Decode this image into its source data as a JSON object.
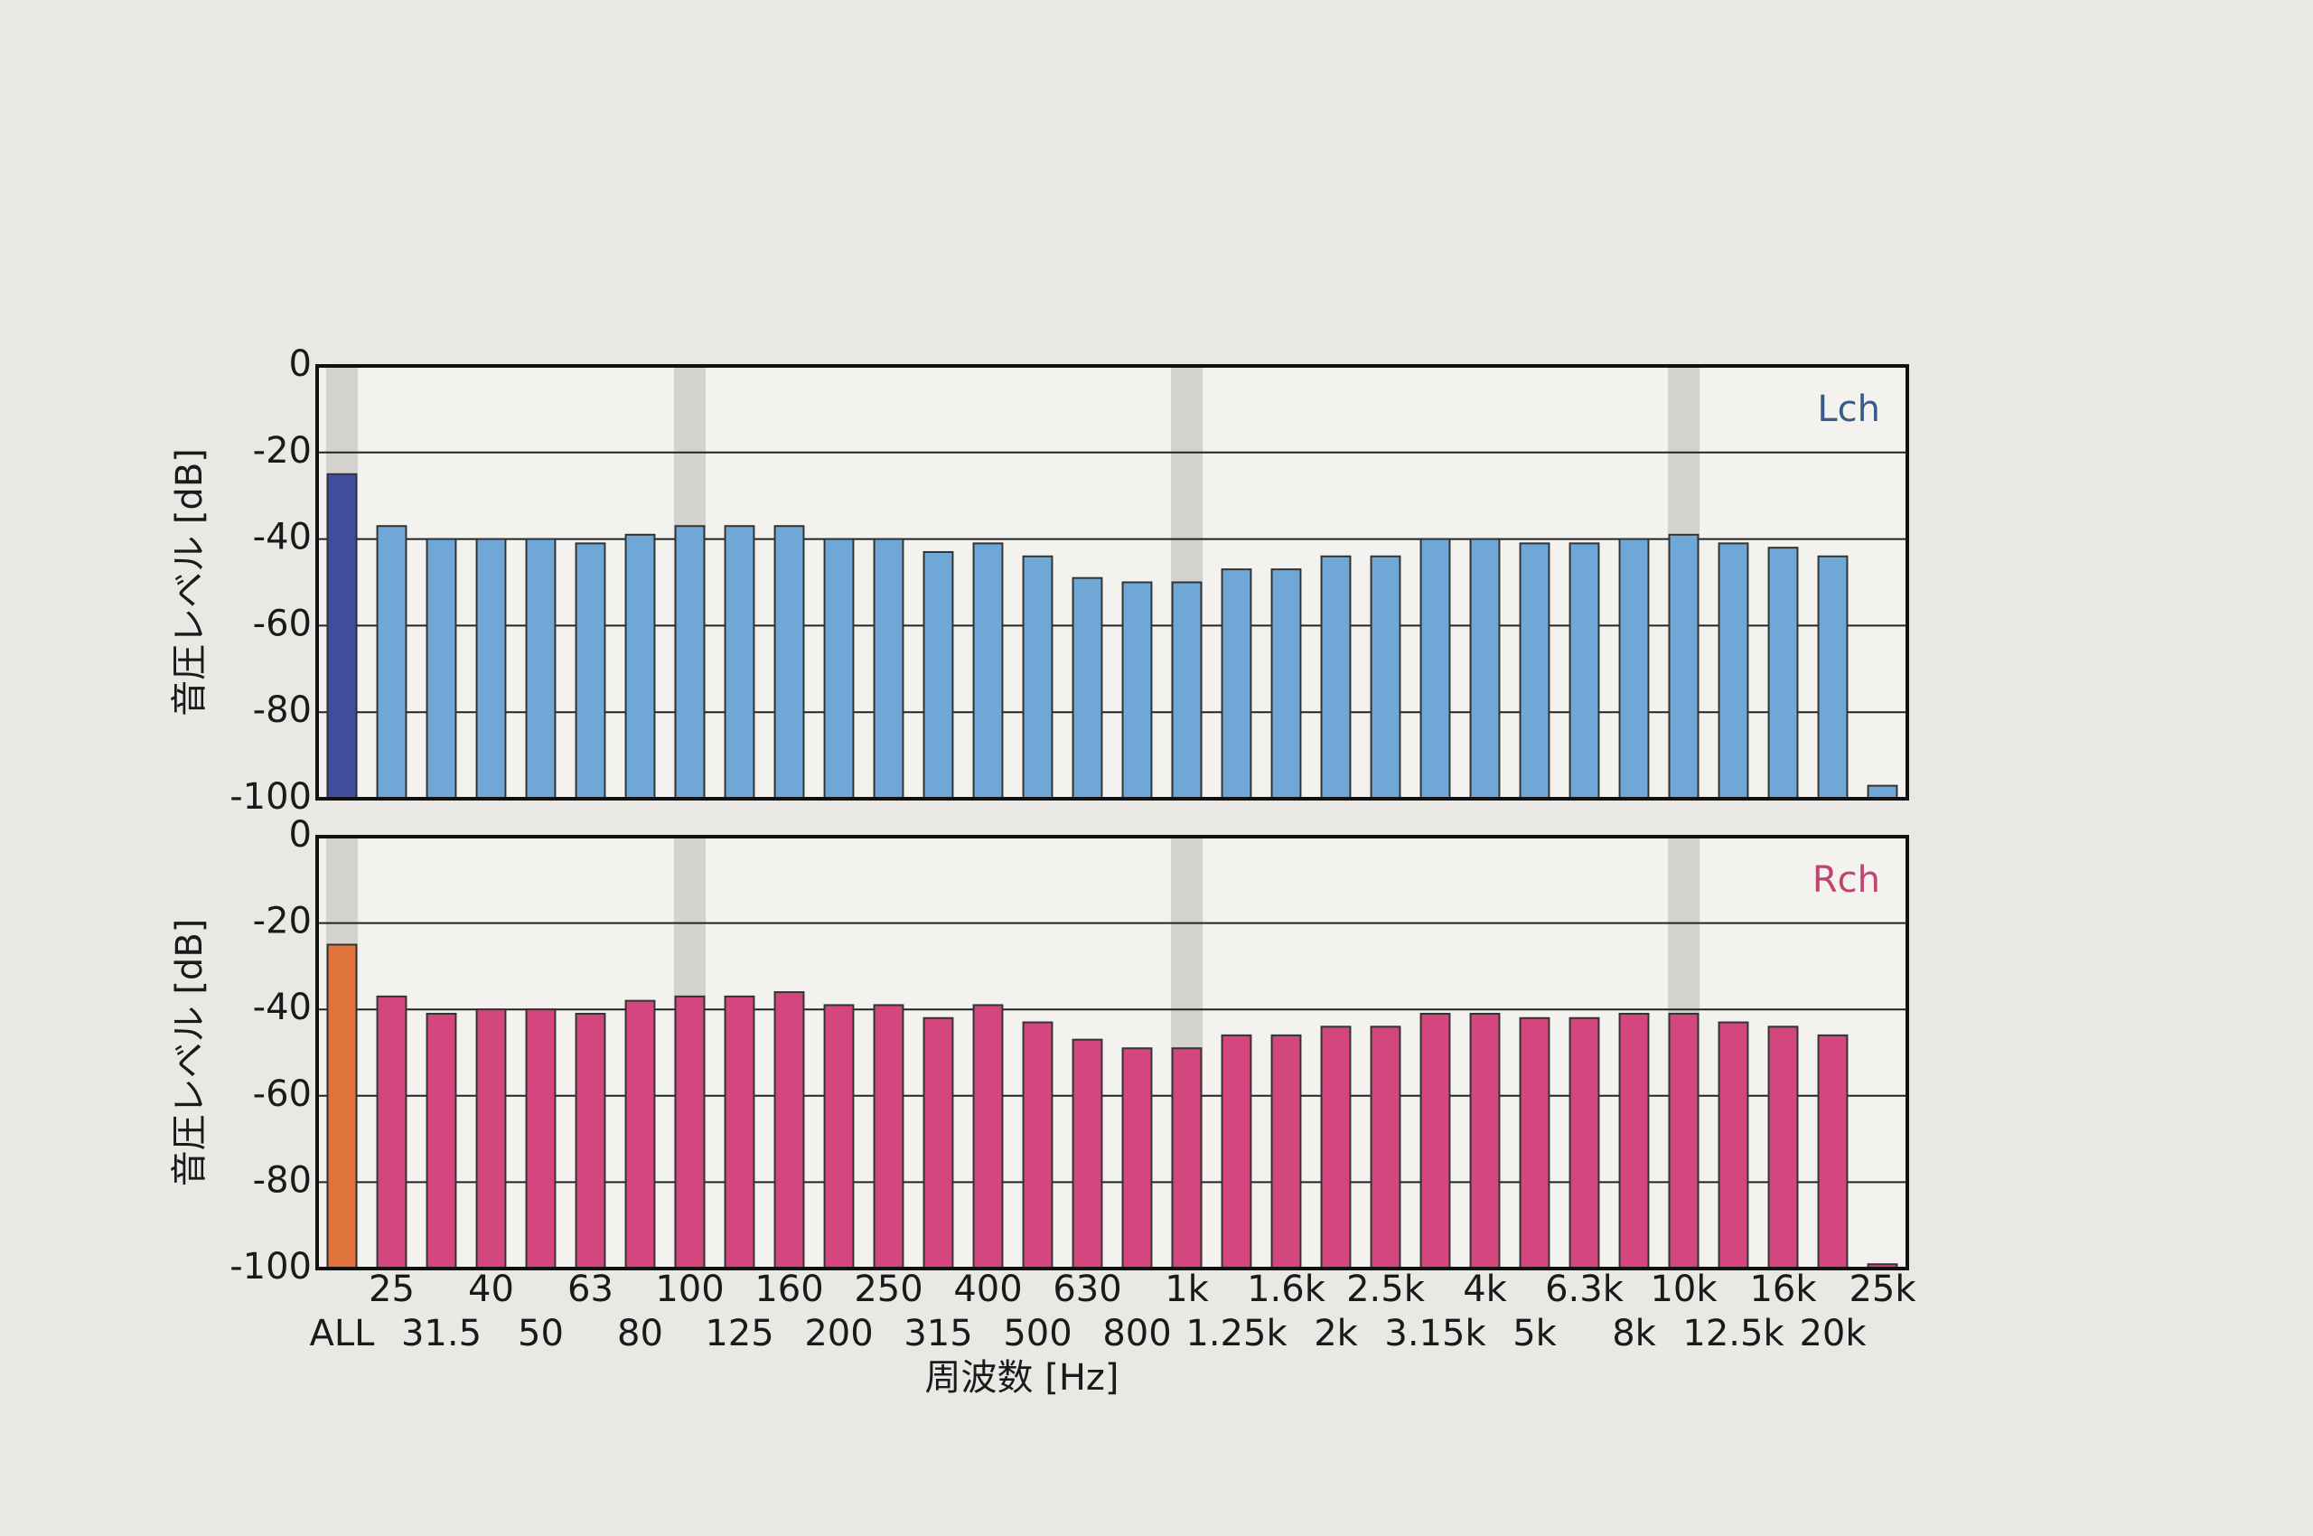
{
  "chart_data": {
    "type": "bar",
    "y_label": "音圧レベル [dB]",
    "x_label": "周波数 [Hz]",
    "categories": [
      "ALL",
      "25",
      "31.5",
      "40",
      "50",
      "63",
      "80",
      "100",
      "125",
      "160",
      "200",
      "250",
      "315",
      "400",
      "500",
      "630",
      "800",
      "1k",
      "1.25k",
      "1.6k",
      "2k",
      "2.5k",
      "3.15k",
      "4k",
      "5k",
      "6.3k",
      "8k",
      "10k",
      "12.5k",
      "16k",
      "20k",
      "25k"
    ],
    "bands": [
      "ALL",
      "100",
      "1k",
      "10k"
    ],
    "ylim": [
      -100,
      0
    ],
    "yticks": [
      -100,
      -80,
      -60,
      -40,
      -20,
      0
    ],
    "grid": true,
    "legend": "top-right",
    "series": [
      {
        "name": "Lch",
        "color": "#6fa8d6",
        "highlight_color": "#3f4f9c",
        "label_color": "#3b5a8c",
        "values": [
          -25,
          -37,
          -40,
          -40,
          -40,
          -41,
          -39,
          -37,
          -37,
          -37,
          -40,
          -40,
          -43,
          -41,
          -44,
          -49,
          -50,
          -50,
          -47,
          -47,
          -44,
          -44,
          -40,
          -40,
          -41,
          -41,
          -40,
          -39,
          -41,
          -42,
          -44,
          -97
        ]
      },
      {
        "name": "Rch",
        "color": "#d4477e",
        "highlight_color": "#e0743c",
        "label_color": "#c0446f",
        "values": [
          -25,
          -37,
          -41,
          -40,
          -40,
          -41,
          -38,
          -37,
          -37,
          -36,
          -39,
          -39,
          -42,
          -39,
          -43,
          -47,
          -49,
          -49,
          -46,
          -46,
          -44,
          -44,
          -41,
          -41,
          -42,
          -42,
          -41,
          -41,
          -43,
          -44,
          -46,
          -99
        ]
      }
    ]
  }
}
